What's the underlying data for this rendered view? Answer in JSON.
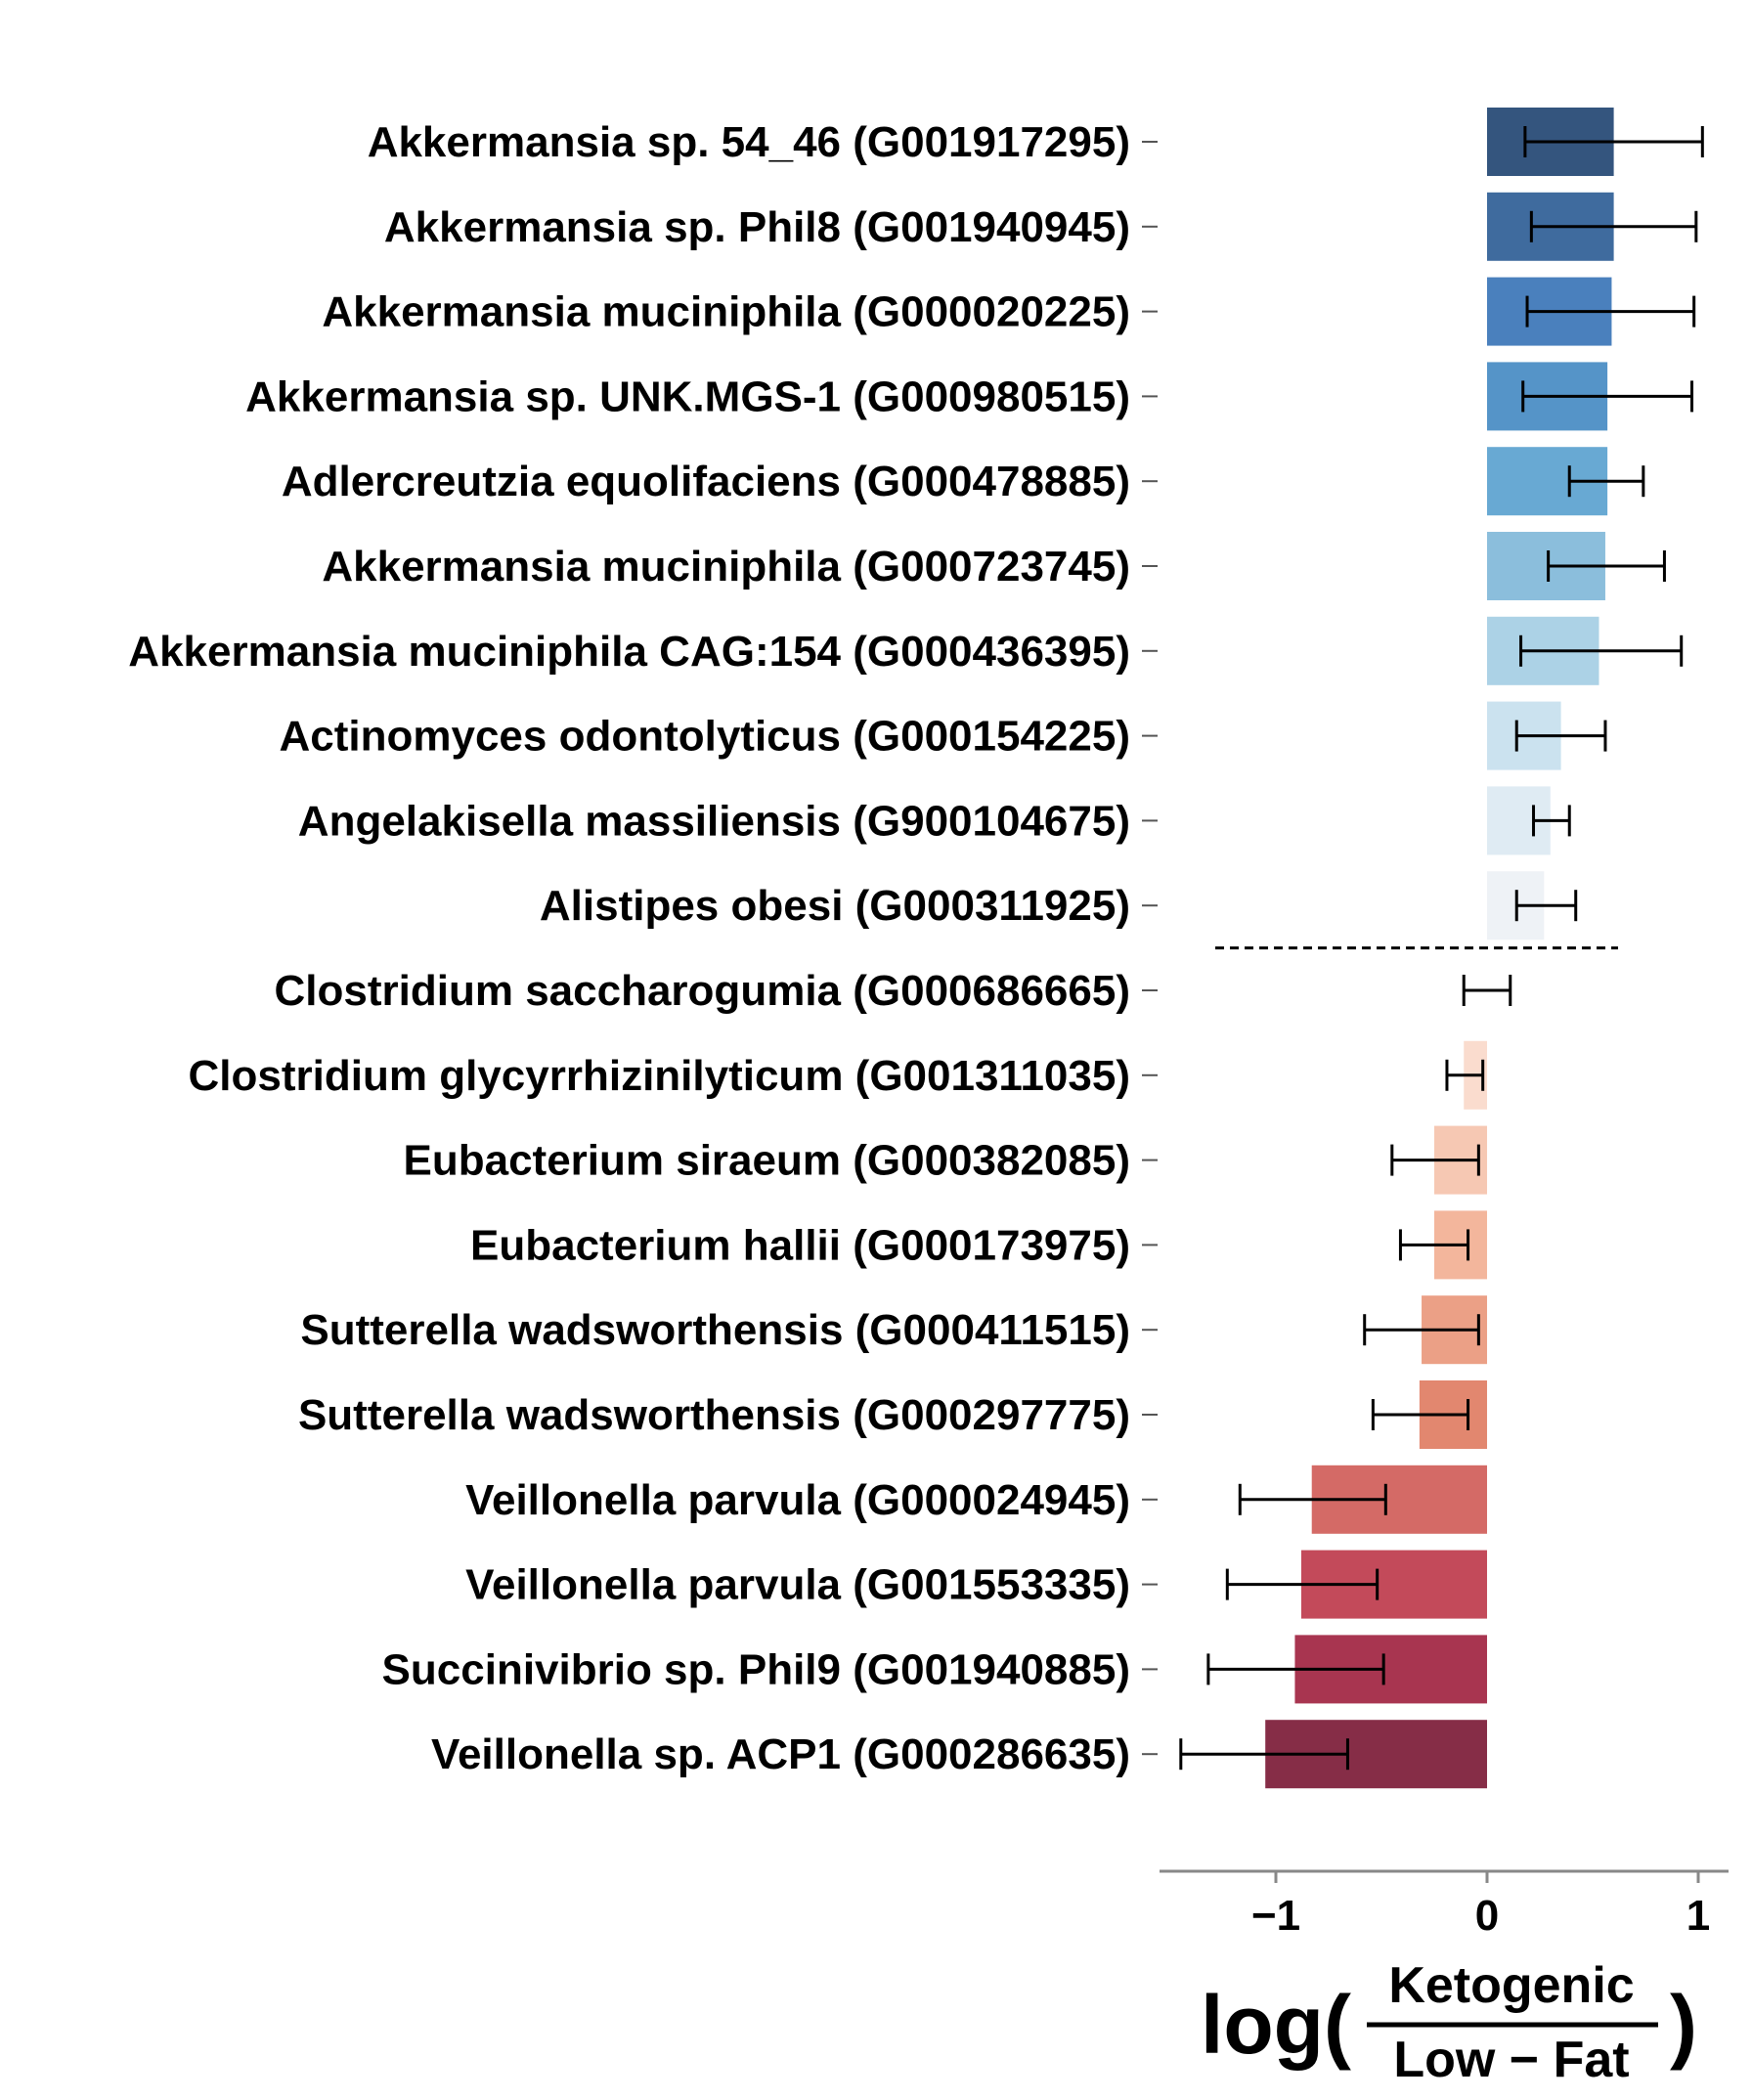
{
  "chart_data": {
    "type": "bar",
    "orientation": "horizontal",
    "categories": [
      "Akkermansia sp. 54_46 (G001917295)",
      "Akkermansia sp. Phil8 (G001940945)",
      "Akkermansia muciniphila (G000020225)",
      "Akkermansia sp. UNK.MGS-1 (G000980515)",
      "Adlercreutzia equolifaciens (G000478885)",
      "Akkermansia muciniphila (G000723745)",
      "Akkermansia muciniphila CAG:154 (G000436395)",
      "Actinomyces odontolyticus (G000154225)",
      "Angelakisella massiliensis (G900104675)",
      "Alistipes obesi (G000311925)",
      "Clostridium saccharogumia (G000686665)",
      "Clostridium glycyrrhizinilyticum (G001311035)",
      "Eubacterium siraeum (G000382085)",
      "Eubacterium hallii (G000173975)",
      "Sutterella wadsworthensis (G000411515)",
      "Sutterella wadsworthensis (G000297775)",
      "Veillonella parvula (G000024945)",
      "Veillonella parvula (G001553335)",
      "Succinivibrio sp. Phil9 (G001940885)",
      "Veillonella sp. ACP1 (G000286635)"
    ],
    "values": [
      0.6,
      0.6,
      0.59,
      0.57,
      0.57,
      0.56,
      0.53,
      0.35,
      0.3,
      0.27,
      0.0,
      -0.11,
      -0.25,
      -0.25,
      -0.31,
      -0.32,
      -0.83,
      -0.88,
      -0.91,
      -1.05
    ],
    "error_low": [
      0.18,
      0.21,
      0.19,
      0.17,
      0.39,
      0.29,
      0.16,
      0.14,
      0.22,
      0.14,
      -0.11,
      -0.19,
      -0.45,
      -0.41,
      -0.58,
      -0.54,
      -1.17,
      -1.23,
      -1.32,
      -1.45
    ],
    "error_high": [
      1.02,
      0.99,
      0.98,
      0.97,
      0.74,
      0.84,
      0.92,
      0.56,
      0.39,
      0.42,
      0.11,
      -0.02,
      -0.04,
      -0.09,
      -0.04,
      -0.09,
      -0.48,
      -0.52,
      -0.49,
      -0.66
    ],
    "colors": [
      "#34557e",
      "#3f6b9e",
      "#4a80bd",
      "#5594c8",
      "#68a9d3",
      "#8bbedc",
      "#acd2e6",
      "#cbe2ef",
      "#dfebf3",
      "#eef2f6",
      "#fbeee8",
      "#fadcce",
      "#f6c8b3",
      "#f3b69c",
      "#eba086",
      "#e2876f",
      "#d46a66",
      "#c34a5a",
      "#a83550",
      "#862d47"
    ],
    "reference_line_after_index": 9,
    "xlim": [
      -1.6,
      1.15
    ],
    "xticks": [
      -1,
      0,
      1
    ],
    "xtick_labels": [
      "−1",
      "0",
      "1"
    ],
    "xlabel": {
      "prefix": "log(",
      "numerator": "Ketogenic",
      "denominator": "Low − Fat",
      "suffix": ")"
    },
    "grid": false
  }
}
